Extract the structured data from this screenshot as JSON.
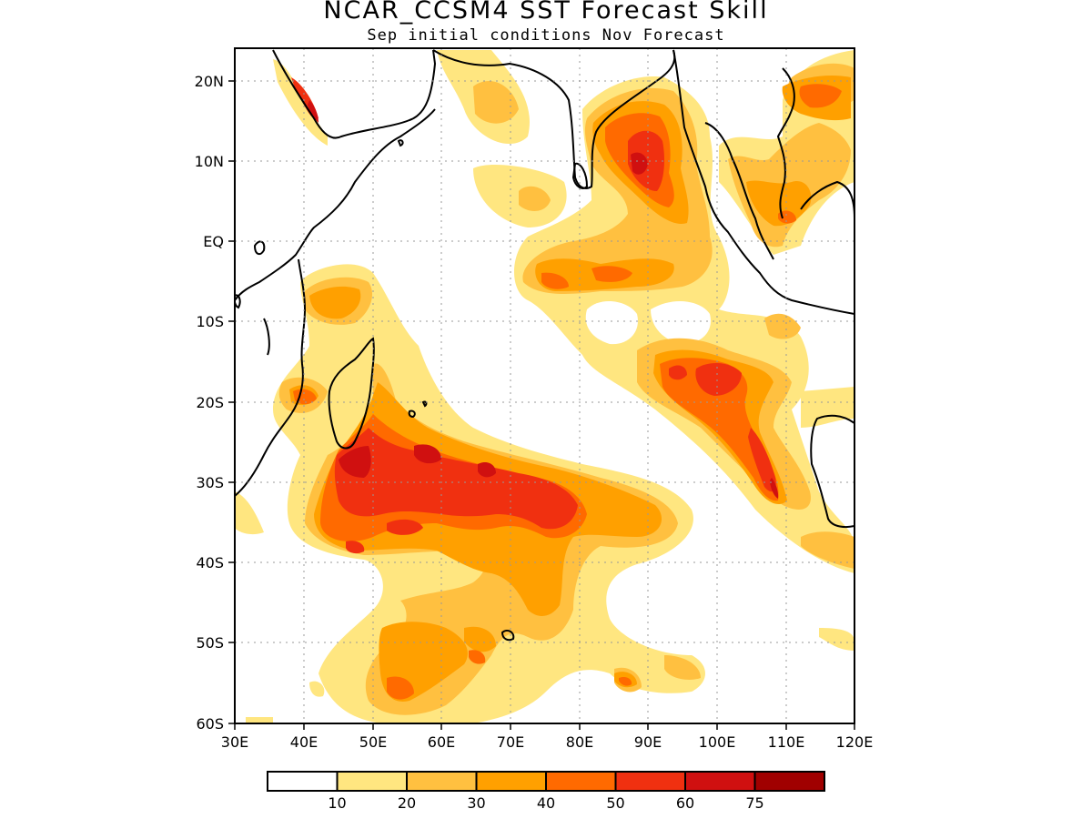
{
  "title": "NCAR_CCSM4 SST Forecast Skill",
  "subtitle": "Sep initial conditions  Nov Forecast",
  "map": {
    "projection": "lat-lon",
    "lon_range": [
      30,
      120
    ],
    "lat_range": [
      -60,
      24
    ],
    "grid": "dotted",
    "x_ticks": [
      "30E",
      "40E",
      "50E",
      "60E",
      "70E",
      "80E",
      "90E",
      "100E",
      "110E",
      "120E"
    ],
    "y_ticks": [
      "20N",
      "10N",
      "EQ",
      "10S",
      "20S",
      "30S",
      "40S",
      "50S",
      "60S"
    ]
  },
  "colorbar": {
    "colors": [
      "#ffffff",
      "#ffe680",
      "#ffc040",
      "#ffa000",
      "#ff6a00",
      "#f03010",
      "#d01010",
      "#a00000"
    ],
    "labels": [
      "10",
      "20",
      "30",
      "40",
      "50",
      "60",
      "75"
    ]
  }
}
